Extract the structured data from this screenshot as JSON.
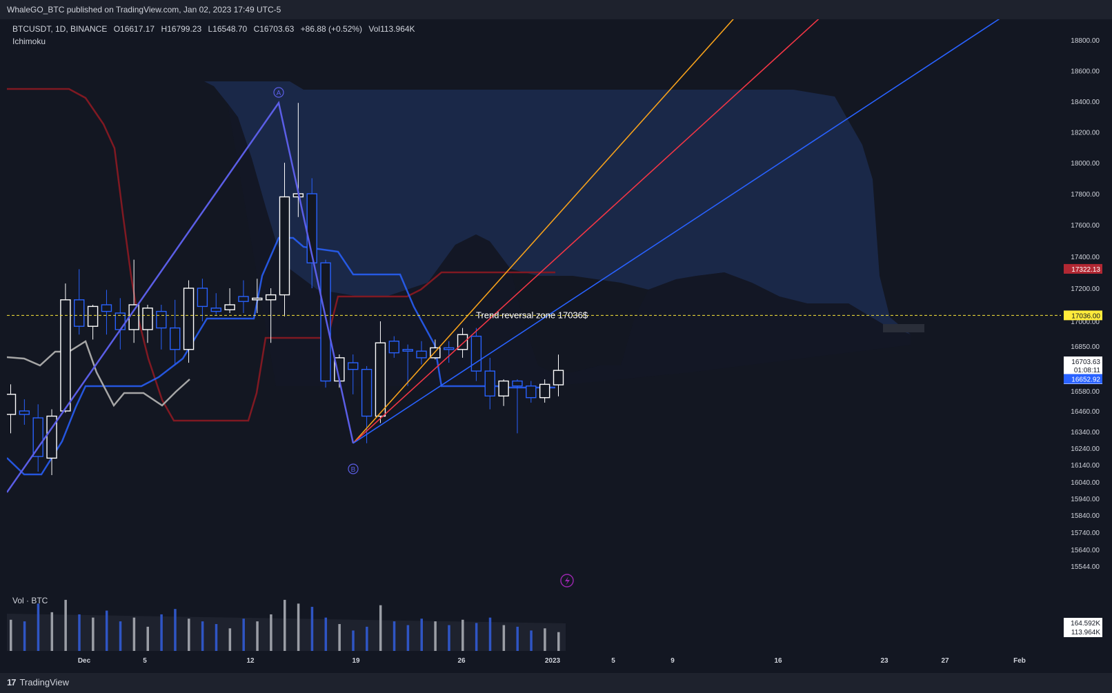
{
  "header": {
    "published": "WhaleGO_BTC published on TradingView.com, Jan 02, 2023 17:49 UTC-5"
  },
  "legend": {
    "symbol": "BTCUSDT, 1D, BINANCE",
    "open": "O16617.17",
    "high": "H16799.23",
    "low": "L16548.70",
    "close": "C16703.63",
    "change": "+86.88 (+0.52%)",
    "volume": "Vol113.964K",
    "indicator": "Ichimoku"
  },
  "volume_legend": "Vol · BTC",
  "footer": {
    "brand": "TradingView",
    "brand_glyph": "17"
  },
  "colors": {
    "background": "#131722",
    "cloud": "#1c2a4d",
    "up_candle": "#ffffff",
    "down_candle": "#2962ff",
    "tenkan": "#2962ff",
    "kijun": "#801922",
    "lagging": "#a6a6a6",
    "fib_orange": "#f7a21b",
    "fib_red": "#f23645",
    "fib_blue": "#2962ff",
    "ab_line": "#5b5ee6",
    "level_line": "#ffeb3b"
  },
  "chart_data": {
    "type": "candlestick",
    "indicator": "Ichimoku",
    "x_tick_labels": [
      "Dec",
      "5",
      "12",
      "19",
      "26",
      "2023",
      "5",
      "9",
      "16",
      "23",
      "27",
      "Feb"
    ],
    "y_tick_labels": [
      "18800.00",
      "18600.00",
      "18400.00",
      "18200.00",
      "18000.00",
      "17800.00",
      "17600.00",
      "17400.00",
      "17200.00",
      "17000.00",
      "16850.00",
      "16580.00",
      "16460.00",
      "16340.00",
      "16240.00",
      "16140.00",
      "16040.00",
      "15940.00",
      "15840.00",
      "15740.00",
      "15640.00",
      "15544.00"
    ],
    "y_ticks": [
      18800,
      18600,
      18400,
      18200,
      18000,
      17800,
      17600,
      17400,
      17200,
      17000,
      16850,
      16580,
      16460,
      16340,
      16240,
      16140,
      16040,
      15940,
      15840,
      15740,
      15640,
      15544
    ],
    "price_labels": [
      {
        "value": "17322.13",
        "color": "#b22833"
      },
      {
        "value": "17036.00",
        "color": "#ffeb3b"
      },
      {
        "value": "16703.63",
        "color": "#ffffff"
      },
      {
        "value": "01:08:11",
        "color": "#ffffff"
      },
      {
        "value": "16703.63",
        "color": "#ffffff"
      },
      {
        "value": "16652.92",
        "color": "#2962ff"
      }
    ],
    "volume_labels": [
      "164.592K",
      "113.964K"
    ],
    "annotations": {
      "level_text": "Trend reversal zone 17036$",
      "level_value": 17036,
      "point_a": "A",
      "point_b": "B"
    },
    "candles": [
      {
        "o": 16440,
        "h": 16620,
        "l": 16330,
        "c": 16560
      },
      {
        "o": 16460,
        "h": 16530,
        "l": 16380,
        "c": 16440
      },
      {
        "o": 16420,
        "h": 16500,
        "l": 16100,
        "c": 16190
      },
      {
        "o": 16180,
        "h": 16470,
        "l": 16080,
        "c": 16430
      },
      {
        "o": 16460,
        "h": 17230,
        "l": 16450,
        "c": 17130
      },
      {
        "o": 17130,
        "h": 17320,
        "l": 16920,
        "c": 16970
      },
      {
        "o": 16970,
        "h": 17100,
        "l": 16890,
        "c": 17090
      },
      {
        "o": 17100,
        "h": 17190,
        "l": 16920,
        "c": 17060
      },
      {
        "o": 17050,
        "h": 17140,
        "l": 16830,
        "c": 16950
      },
      {
        "o": 16950,
        "h": 17380,
        "l": 16870,
        "c": 17100
      },
      {
        "o": 16950,
        "h": 17100,
        "l": 16870,
        "c": 17080
      },
      {
        "o": 17060,
        "h": 17100,
        "l": 16830,
        "c": 16960
      },
      {
        "o": 16960,
        "h": 17130,
        "l": 16740,
        "c": 16830
      },
      {
        "o": 16830,
        "h": 17250,
        "l": 16750,
        "c": 17200
      },
      {
        "o": 17200,
        "h": 17260,
        "l": 17000,
        "c": 17090
      },
      {
        "o": 17080,
        "h": 17170,
        "l": 17040,
        "c": 17060
      },
      {
        "o": 17070,
        "h": 17200,
        "l": 17050,
        "c": 17100
      },
      {
        "o": 17150,
        "h": 17250,
        "l": 17050,
        "c": 17120
      },
      {
        "o": 17130,
        "h": 17260,
        "l": 17050,
        "c": 17140
      },
      {
        "o": 17130,
        "h": 17200,
        "l": 16870,
        "c": 17160
      },
      {
        "o": 17160,
        "h": 18000,
        "l": 17030,
        "c": 17780
      },
      {
        "o": 17780,
        "h": 18390,
        "l": 17650,
        "c": 17800
      },
      {
        "o": 17800,
        "h": 17900,
        "l": 17200,
        "c": 17360
      },
      {
        "o": 17360,
        "h": 17380,
        "l": 16600,
        "c": 16640
      },
      {
        "o": 16640,
        "h": 16800,
        "l": 16600,
        "c": 16780
      },
      {
        "o": 16750,
        "h": 16800,
        "l": 16560,
        "c": 16710
      },
      {
        "o": 16710,
        "h": 16730,
        "l": 16270,
        "c": 16430
      },
      {
        "o": 16430,
        "h": 17000,
        "l": 16390,
        "c": 16870
      },
      {
        "o": 16880,
        "h": 16910,
        "l": 16780,
        "c": 16810
      },
      {
        "o": 16830,
        "h": 16860,
        "l": 16610,
        "c": 16820
      },
      {
        "o": 16820,
        "h": 16880,
        "l": 16740,
        "c": 16780
      },
      {
        "o": 16780,
        "h": 16890,
        "l": 16770,
        "c": 16840
      },
      {
        "o": 16840,
        "h": 16880,
        "l": 16750,
        "c": 16830
      },
      {
        "o": 16830,
        "h": 16960,
        "l": 16780,
        "c": 16920
      },
      {
        "o": 16910,
        "h": 16960,
        "l": 16640,
        "c": 16700
      },
      {
        "o": 16700,
        "h": 16780,
        "l": 16470,
        "c": 16550
      },
      {
        "o": 16550,
        "h": 16650,
        "l": 16490,
        "c": 16640
      },
      {
        "o": 16640,
        "h": 16650,
        "l": 16330,
        "c": 16610
      },
      {
        "o": 16610,
        "h": 16640,
        "l": 16510,
        "c": 16540
      },
      {
        "o": 16540,
        "h": 16650,
        "l": 16510,
        "c": 16620
      },
      {
        "o": 16617,
        "h": 16799,
        "l": 16548,
        "c": 16704
      }
    ],
    "volume": [
      0.58,
      0.55,
      0.88,
      0.72,
      0.95,
      0.68,
      0.62,
      0.75,
      0.55,
      0.62,
      0.45,
      0.68,
      0.78,
      0.6,
      0.55,
      0.5,
      0.42,
      0.6,
      0.55,
      0.68,
      0.95,
      0.88,
      0.82,
      0.62,
      0.5,
      0.38,
      0.45,
      0.85,
      0.55,
      0.48,
      0.6,
      0.55,
      0.48,
      0.58,
      0.52,
      0.62,
      0.48,
      0.45,
      0.38,
      0.42,
      0.35
    ]
  }
}
